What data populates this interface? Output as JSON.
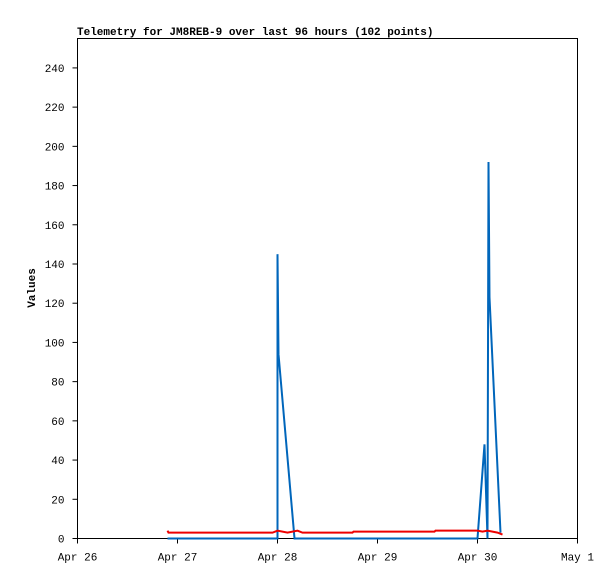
{
  "chart_data": {
    "type": "line",
    "title": "Telemetry for JM8REB-9 over last 96 hours (102 points)",
    "ylabel": "Values",
    "xlim": [
      0,
      5
    ],
    "xticks": [
      {
        "value": 0,
        "label": "Apr 26"
      },
      {
        "value": 1,
        "label": "Apr 27"
      },
      {
        "value": 2,
        "label": "Apr 28"
      },
      {
        "value": 3,
        "label": "Apr 29"
      },
      {
        "value": 4,
        "label": "Apr 30"
      },
      {
        "value": 5,
        "label": "May 1"
      }
    ],
    "ylim": [
      0,
      255
    ],
    "yticks": [
      0,
      20,
      40,
      60,
      80,
      100,
      120,
      140,
      160,
      180,
      200,
      220,
      240
    ],
    "grid": false,
    "series": [
      {
        "color": "#0066bb",
        "x": [
          0.9,
          2.0,
          2.0,
          2.01,
          2.17,
          4.0,
          4.07,
          4.1,
          4.11,
          4.12,
          4.23
        ],
        "values": [
          0,
          0,
          145,
          94,
          0,
          0,
          48,
          0,
          192,
          123,
          3
        ]
      },
      {
        "color": "#ee0000",
        "x": [
          0.9,
          0.91,
          1.95,
          2.0,
          2.1,
          2.2,
          2.25,
          2.75,
          2.76,
          3.57,
          3.58,
          4.0,
          4.05,
          4.1,
          4.2,
          4.25
        ],
        "values": [
          4,
          3,
          3,
          4,
          3,
          4,
          3,
          3,
          3.5,
          3.5,
          4,
          4,
          3.5,
          4,
          3,
          2
        ]
      }
    ]
  }
}
